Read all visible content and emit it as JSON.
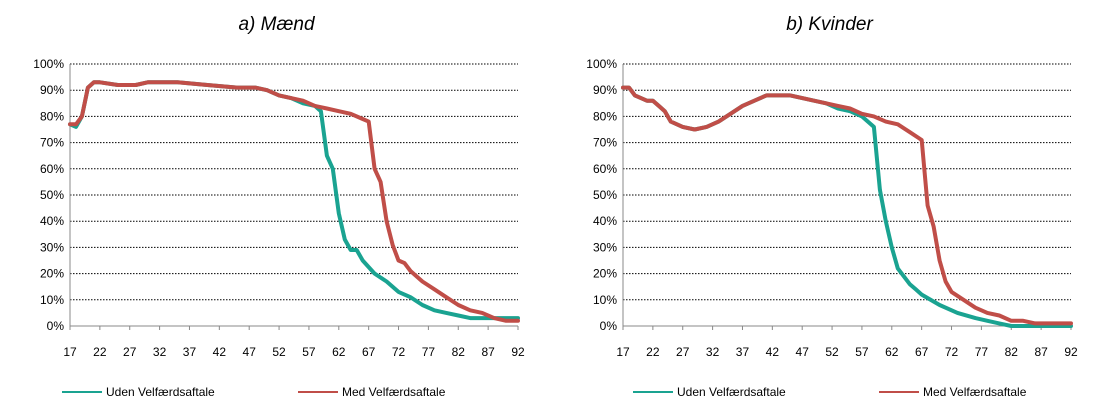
{
  "colors": {
    "uden": "#1aa391",
    "med": "#c04e48",
    "grid": "#000000",
    "axis": "#888888"
  },
  "chart_data": [
    {
      "type": "line",
      "title": "a) Mænd",
      "xlabel": "",
      "ylabel": "",
      "xlim": [
        17,
        92
      ],
      "ylim": [
        0,
        100
      ],
      "x_ticks": [
        "17",
        "22",
        "27",
        "32",
        "37",
        "42",
        "47",
        "52",
        "57",
        "62",
        "67",
        "72",
        "77",
        "82",
        "87",
        "92"
      ],
      "y_ticks": [
        "0%",
        "10%",
        "20%",
        "30%",
        "40%",
        "50%",
        "60%",
        "70%",
        "80%",
        "90%",
        "100%"
      ],
      "grid": "horizontal-dotted",
      "legend_position": "bottom",
      "series": [
        {
          "name": "Uden Velfærdsaftale",
          "color_key": "uden",
          "points": [
            [
              17,
              77
            ],
            [
              18,
              76
            ],
            [
              19,
              80
            ],
            [
              20,
              91
            ],
            [
              21,
              93
            ],
            [
              22,
              93
            ],
            [
              25,
              92
            ],
            [
              28,
              92
            ],
            [
              30,
              93
            ],
            [
              35,
              93
            ],
            [
              40,
              92
            ],
            [
              45,
              91
            ],
            [
              48,
              91
            ],
            [
              50,
              90
            ],
            [
              52,
              88
            ],
            [
              54,
              87
            ],
            [
              56,
              85
            ],
            [
              58,
              84
            ],
            [
              59,
              82
            ],
            [
              60,
              65
            ],
            [
              61,
              60
            ],
            [
              62,
              43
            ],
            [
              63,
              33
            ],
            [
              64,
              29
            ],
            [
              65,
              29
            ],
            [
              66,
              25
            ],
            [
              68,
              20
            ],
            [
              70,
              17
            ],
            [
              72,
              13
            ],
            [
              74,
              11
            ],
            [
              76,
              8
            ],
            [
              78,
              6
            ],
            [
              80,
              5
            ],
            [
              82,
              4
            ],
            [
              84,
              3
            ],
            [
              86,
              3
            ],
            [
              88,
              3
            ],
            [
              90,
              3
            ],
            [
              92,
              3
            ]
          ]
        },
        {
          "name": "Med Velfærdsaftale",
          "color_key": "med",
          "points": [
            [
              17,
              77
            ],
            [
              18,
              77
            ],
            [
              19,
              80
            ],
            [
              20,
              91
            ],
            [
              21,
              93
            ],
            [
              22,
              93
            ],
            [
              25,
              92
            ],
            [
              28,
              92
            ],
            [
              30,
              93
            ],
            [
              35,
              93
            ],
            [
              40,
              92
            ],
            [
              45,
              91
            ],
            [
              48,
              91
            ],
            [
              50,
              90
            ],
            [
              52,
              88
            ],
            [
              54,
              87
            ],
            [
              56,
              86
            ],
            [
              58,
              84
            ],
            [
              60,
              83
            ],
            [
              62,
              82
            ],
            [
              64,
              81
            ],
            [
              66,
              79
            ],
            [
              67,
              78
            ],
            [
              68,
              60
            ],
            [
              69,
              55
            ],
            [
              70,
              40
            ],
            [
              71,
              31
            ],
            [
              72,
              25
            ],
            [
              73,
              24
            ],
            [
              74,
              21
            ],
            [
              76,
              17
            ],
            [
              78,
              14
            ],
            [
              80,
              11
            ],
            [
              82,
              8
            ],
            [
              84,
              6
            ],
            [
              86,
              5
            ],
            [
              88,
              3
            ],
            [
              90,
              2
            ],
            [
              92,
              2
            ]
          ]
        }
      ]
    },
    {
      "type": "line",
      "title": "b) Kvinder",
      "xlabel": "",
      "ylabel": "",
      "xlim": [
        17,
        92
      ],
      "ylim": [
        0,
        100
      ],
      "x_ticks": [
        "17",
        "22",
        "27",
        "32",
        "37",
        "42",
        "47",
        "52",
        "57",
        "62",
        "67",
        "72",
        "77",
        "82",
        "87",
        "92"
      ],
      "y_ticks": [
        "0%",
        "10%",
        "20%",
        "30%",
        "40%",
        "50%",
        "60%",
        "70%",
        "80%",
        "90%",
        "100%"
      ],
      "grid": "horizontal-dotted",
      "legend_position": "bottom",
      "series": [
        {
          "name": "Uden Velfærdsaftale",
          "color_key": "uden",
          "points": [
            [
              17,
              91
            ],
            [
              18,
              91
            ],
            [
              19,
              88
            ],
            [
              21,
              86
            ],
            [
              22,
              86
            ],
            [
              23,
              84
            ],
            [
              24,
              82
            ],
            [
              25,
              78
            ],
            [
              27,
              76
            ],
            [
              29,
              75
            ],
            [
              31,
              76
            ],
            [
              33,
              78
            ],
            [
              35,
              81
            ],
            [
              37,
              84
            ],
            [
              39,
              86
            ],
            [
              41,
              88
            ],
            [
              43,
              88
            ],
            [
              45,
              88
            ],
            [
              47,
              87
            ],
            [
              49,
              86
            ],
            [
              51,
              85
            ],
            [
              53,
              83
            ],
            [
              55,
              82
            ],
            [
              57,
              80
            ],
            [
              58,
              78
            ],
            [
              59,
              76
            ],
            [
              60,
              52
            ],
            [
              61,
              40
            ],
            [
              62,
              30
            ],
            [
              63,
              22
            ],
            [
              64,
              19
            ],
            [
              65,
              16
            ],
            [
              66,
              14
            ],
            [
              67,
              12
            ],
            [
              70,
              8
            ],
            [
              73,
              5
            ],
            [
              76,
              3
            ],
            [
              78,
              2
            ],
            [
              80,
              1
            ],
            [
              82,
              0
            ],
            [
              85,
              0
            ],
            [
              88,
              0
            ],
            [
              92,
              0
            ]
          ]
        },
        {
          "name": "Med Velfærdsaftale",
          "color_key": "med",
          "points": [
            [
              17,
              91
            ],
            [
              18,
              91
            ],
            [
              19,
              88
            ],
            [
              21,
              86
            ],
            [
              22,
              86
            ],
            [
              23,
              84
            ],
            [
              24,
              82
            ],
            [
              25,
              78
            ],
            [
              27,
              76
            ],
            [
              29,
              75
            ],
            [
              31,
              76
            ],
            [
              33,
              78
            ],
            [
              35,
              81
            ],
            [
              37,
              84
            ],
            [
              39,
              86
            ],
            [
              41,
              88
            ],
            [
              43,
              88
            ],
            [
              45,
              88
            ],
            [
              47,
              87
            ],
            [
              49,
              86
            ],
            [
              51,
              85
            ],
            [
              53,
              84
            ],
            [
              55,
              83
            ],
            [
              57,
              81
            ],
            [
              59,
              80
            ],
            [
              61,
              78
            ],
            [
              63,
              77
            ],
            [
              65,
              74
            ],
            [
              67,
              71
            ],
            [
              68,
              46
            ],
            [
              69,
              38
            ],
            [
              70,
              25
            ],
            [
              71,
              17
            ],
            [
              72,
              13
            ],
            [
              74,
              10
            ],
            [
              76,
              7
            ],
            [
              78,
              5
            ],
            [
              80,
              4
            ],
            [
              82,
              2
            ],
            [
              84,
              2
            ],
            [
              86,
              1
            ],
            [
              88,
              1
            ],
            [
              90,
              1
            ],
            [
              92,
              1
            ]
          ]
        }
      ]
    }
  ]
}
